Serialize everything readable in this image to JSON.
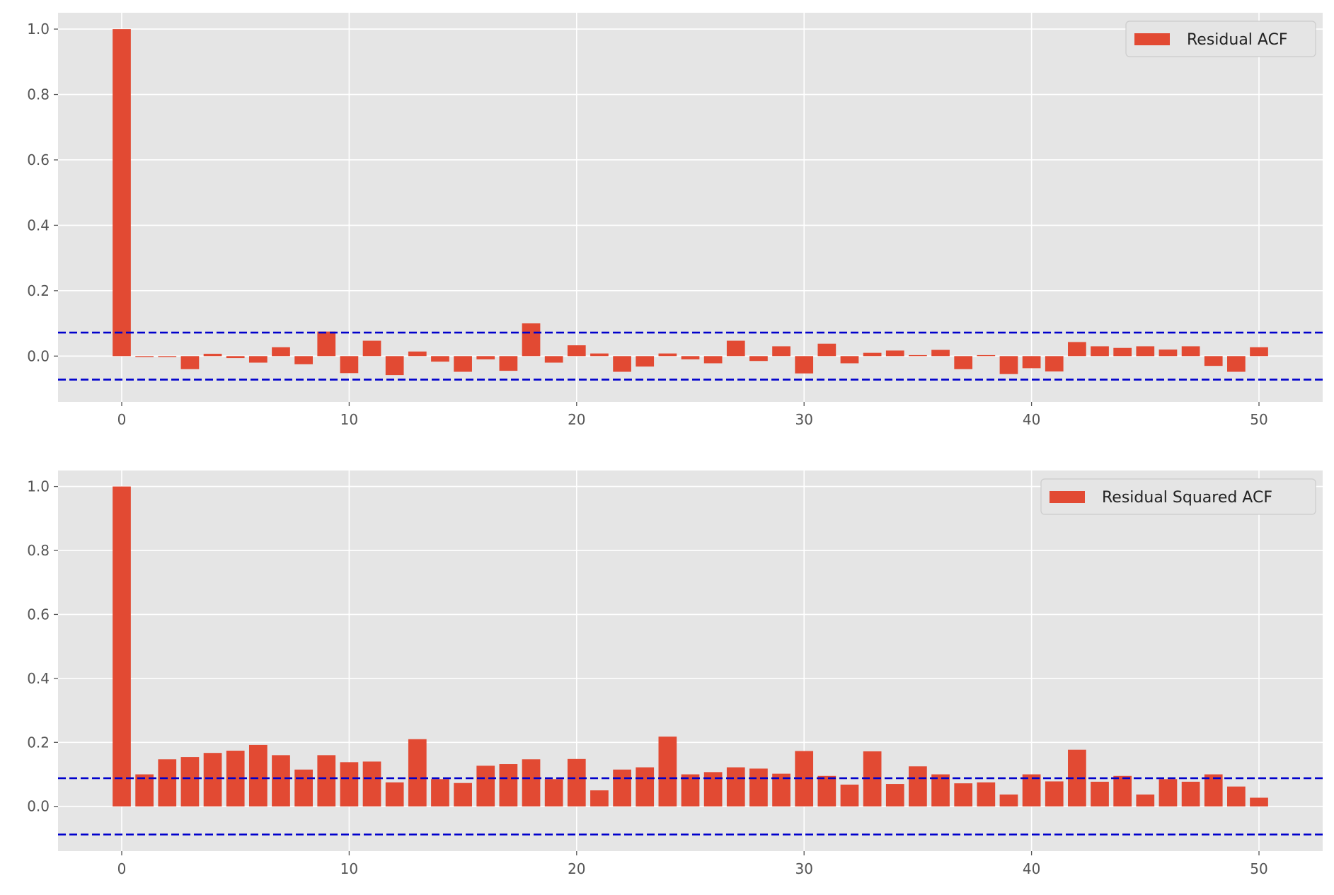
{
  "chart_data": [
    {
      "type": "bar",
      "title": "",
      "xlabel": "",
      "ylabel": "",
      "xlim": [
        -2.8,
        52.8
      ],
      "ylim": [
        -0.14,
        1.05
      ],
      "xticks": [
        0,
        10,
        20,
        30,
        40,
        50
      ],
      "yticks": [
        0.0,
        0.2,
        0.4,
        0.6,
        0.8,
        1.0
      ],
      "ytick_labels": [
        "0.0",
        "0.2",
        "0.4",
        "0.6",
        "0.8",
        "1.0"
      ],
      "grid": true,
      "legend_position": "top-right",
      "bar_color": "#E24A33",
      "confidence_band": {
        "upper": 0.072,
        "lower": -0.072,
        "color": "#0000cc",
        "style": "dashed"
      },
      "series": [
        {
          "name": "Residual ACF",
          "x": [
            0,
            1,
            2,
            3,
            4,
            5,
            6,
            7,
            8,
            9,
            10,
            11,
            12,
            13,
            14,
            15,
            16,
            17,
            18,
            19,
            20,
            21,
            22,
            23,
            24,
            25,
            26,
            27,
            28,
            29,
            30,
            31,
            32,
            33,
            34,
            35,
            36,
            37,
            38,
            39,
            40,
            41,
            42,
            43,
            44,
            45,
            46,
            47,
            48,
            49,
            50
          ],
          "values": [
            1.0,
            -0.003,
            -0.003,
            -0.04,
            0.007,
            -0.006,
            -0.02,
            0.027,
            -0.025,
            0.075,
            -0.052,
            0.047,
            -0.058,
            0.014,
            -0.017,
            -0.048,
            -0.01,
            -0.045,
            0.1,
            -0.02,
            0.033,
            0.008,
            -0.048,
            -0.032,
            0.008,
            -0.01,
            -0.022,
            0.047,
            -0.015,
            0.03,
            -0.053,
            0.038,
            -0.022,
            0.01,
            0.017,
            0.003,
            0.019,
            -0.04,
            0.003,
            -0.055,
            -0.037,
            -0.047,
            0.043,
            0.03,
            0.025,
            0.03,
            0.02,
            0.03,
            -0.03,
            -0.048,
            0.027
          ]
        }
      ]
    },
    {
      "type": "bar",
      "title": "",
      "xlabel": "",
      "ylabel": "",
      "xlim": [
        -2.8,
        52.8
      ],
      "ylim": [
        -0.14,
        1.05
      ],
      "xticks": [
        0,
        10,
        20,
        30,
        40,
        50
      ],
      "yticks": [
        0.0,
        0.2,
        0.4,
        0.6,
        0.8,
        1.0
      ],
      "ytick_labels": [
        "0.0",
        "0.2",
        "0.4",
        "0.6",
        "0.8",
        "1.0"
      ],
      "grid": true,
      "legend_position": "top-right",
      "bar_color": "#E24A33",
      "confidence_band": {
        "upper": 0.088,
        "lower": -0.088,
        "color": "#0000cc",
        "style": "dashed"
      },
      "series": [
        {
          "name": "Residual Squared ACF",
          "x": [
            0,
            1,
            2,
            3,
            4,
            5,
            6,
            7,
            8,
            9,
            10,
            11,
            12,
            13,
            14,
            15,
            16,
            17,
            18,
            19,
            20,
            21,
            22,
            23,
            24,
            25,
            26,
            27,
            28,
            29,
            30,
            31,
            32,
            33,
            34,
            35,
            36,
            37,
            38,
            39,
            40,
            41,
            42,
            43,
            44,
            45,
            46,
            47,
            48,
            49,
            50
          ],
          "values": [
            1.0,
            0.1,
            0.147,
            0.154,
            0.167,
            0.174,
            0.192,
            0.16,
            0.115,
            0.16,
            0.138,
            0.14,
            0.075,
            0.21,
            0.085,
            0.073,
            0.127,
            0.132,
            0.147,
            0.085,
            0.148,
            0.05,
            0.115,
            0.122,
            0.218,
            0.1,
            0.107,
            0.122,
            0.118,
            0.102,
            0.173,
            0.095,
            0.068,
            0.172,
            0.07,
            0.125,
            0.1,
            0.072,
            0.075,
            0.037,
            0.1,
            0.078,
            0.177,
            0.077,
            0.095,
            0.037,
            0.085,
            0.077,
            0.1,
            0.062,
            0.027
          ]
        }
      ]
    }
  ]
}
